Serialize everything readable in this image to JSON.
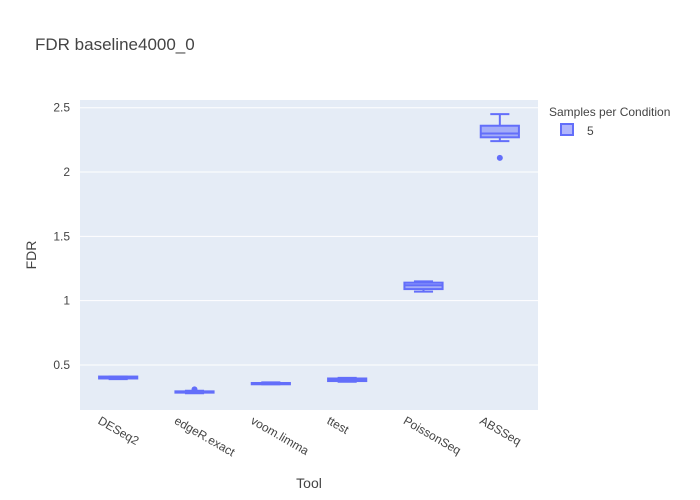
{
  "chart_data": {
    "type": "box",
    "title": "FDR baseline4000_0",
    "xlabel": "Tool",
    "ylabel": "FDR",
    "ylim": [
      0.15,
      2.56
    ],
    "yticks": [
      0.5,
      1,
      1.5,
      2,
      2.5
    ],
    "ytick_labels": [
      "0.5",
      "1",
      "1.5",
      "2",
      "2.5"
    ],
    "grid": true,
    "legend_position": "top-right",
    "legend_title": "Samples per Condition",
    "categories": [
      "DESeq2",
      "edgeR.exact",
      "voom.limma",
      "ttest",
      "PoissonSeq",
      "ABSSeq"
    ],
    "series": [
      {
        "name": "5",
        "color": "#636efa",
        "boxes": [
          {
            "category": "DESeq2",
            "min": 0.39,
            "q1": 0.395,
            "median": 0.4,
            "q3": 0.41,
            "max": 0.41,
            "outliers": []
          },
          {
            "category": "edgeR.exact",
            "min": 0.28,
            "q1": 0.285,
            "median": 0.29,
            "q3": 0.295,
            "max": 0.3,
            "outliers": [
              0.31
            ]
          },
          {
            "category": "voom.limma",
            "min": 0.35,
            "q1": 0.35,
            "median": 0.355,
            "q3": 0.36,
            "max": 0.365,
            "outliers": []
          },
          {
            "category": "ttest",
            "min": 0.37,
            "q1": 0.375,
            "median": 0.385,
            "q3": 0.395,
            "max": 0.4,
            "outliers": []
          },
          {
            "category": "PoissonSeq",
            "min": 1.07,
            "q1": 1.09,
            "median": 1.12,
            "q3": 1.14,
            "max": 1.15,
            "outliers": []
          },
          {
            "category": "ABSSeq",
            "min": 2.24,
            "q1": 2.27,
            "median": 2.3,
            "q3": 2.36,
            "max": 2.45,
            "outliers": [
              2.11
            ]
          }
        ]
      }
    ]
  }
}
